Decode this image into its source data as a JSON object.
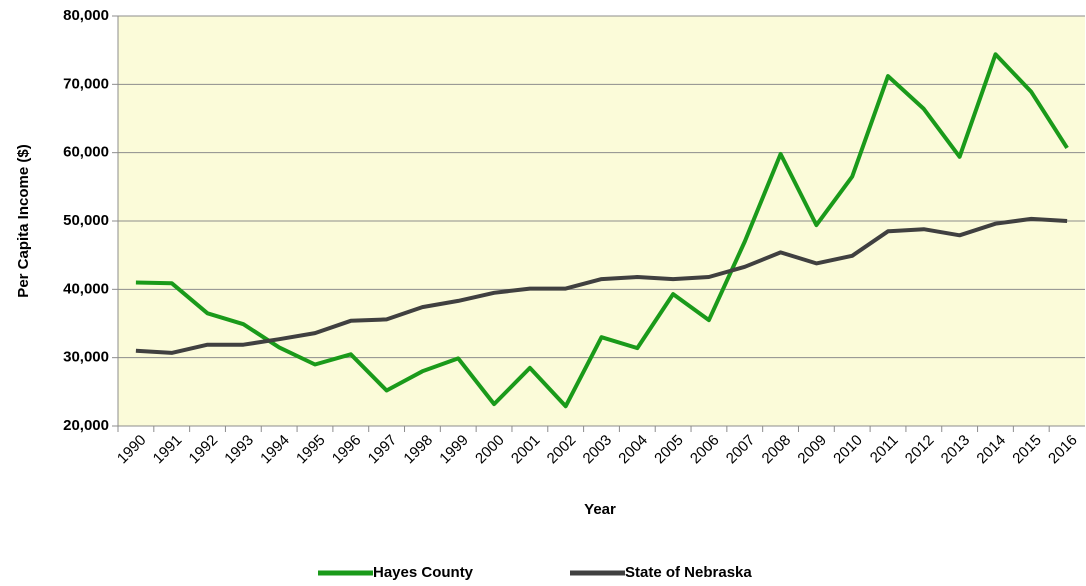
{
  "chart_data": {
    "type": "line",
    "x_label": "Year",
    "y_label": "Per Capita Income ($)",
    "categories": [
      "1990",
      "1991",
      "1992",
      "1993",
      "1994",
      "1995",
      "1996",
      "1997",
      "1998",
      "1999",
      "2000",
      "2001",
      "2002",
      "2003",
      "2004",
      "2005",
      "2006",
      "2007",
      "2008",
      "2009",
      "2010",
      "2011",
      "2012",
      "2013",
      "2014",
      "2015",
      "2016"
    ],
    "series": [
      {
        "name": "Hayes County",
        "color": "#1a9a1a",
        "values": [
          41000,
          40900,
          36500,
          34900,
          31500,
          29000,
          30500,
          25200,
          28000,
          29900,
          23200,
          28500,
          22900,
          33000,
          31400,
          39300,
          35500,
          47000,
          59800,
          49400,
          56500,
          71200,
          66400,
          59400,
          74400,
          68900,
          60700
        ]
      },
      {
        "name": "State of Nebraska",
        "color": "#404040",
        "values": [
          31000,
          30700,
          31900,
          31900,
          32700,
          33600,
          35400,
          35600,
          37400,
          38300,
          39500,
          40100,
          40100,
          41500,
          41800,
          41500,
          41800,
          43300,
          45400,
          43800,
          44900,
          48500,
          48800,
          47900,
          49600,
          50300,
          50000
        ]
      }
    ],
    "ylim": [
      20000,
      80000
    ],
    "yticks": [
      {
        "value": 20000,
        "label": "20,000"
      },
      {
        "value": 30000,
        "label": "30,000"
      },
      {
        "value": 40000,
        "label": "40,000"
      },
      {
        "value": 50000,
        "label": "50,000"
      },
      {
        "value": 60000,
        "label": "60,000"
      },
      {
        "value": 70000,
        "label": "70,000"
      },
      {
        "value": 80000,
        "label": "80,000"
      }
    ],
    "grid": true,
    "legend": "bottom",
    "plot_background": "#fbfbd9"
  }
}
